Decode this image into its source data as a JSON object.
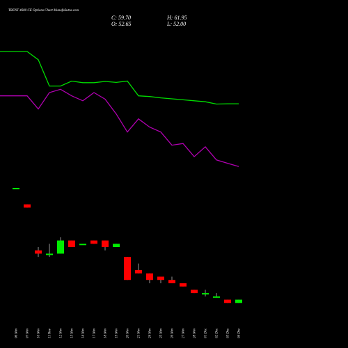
{
  "chart_data": {
    "type": "candlestick",
    "title": "TRENT 4600  CE Options  Chart MunafaSutra.com",
    "ohlc_labels": {
      "close": "C: 59.70",
      "high": "H: 61.95",
      "open": "O: 52.65",
      "low": "L: 52.00"
    },
    "price_range": [
      52.0,
      61.95
    ],
    "categories": [
      "06 Nov",
      "07 Nov",
      "10 Nov",
      "11 Nov",
      "12 Nov",
      "13 Nov",
      "14 Nov",
      "17 Nov",
      "18 Nov",
      "19 Nov",
      "20 Nov",
      "21 Nov",
      "24 Nov",
      "25 Nov",
      "26 Nov",
      "27 Nov",
      "28 Nov",
      "01 Dec",
      "02 Dec",
      "03 Dec",
      "04 Dec"
    ],
    "candles": [
      {
        "open": 57.1,
        "high": 57.1,
        "low": 57.1,
        "close": 57.1
      },
      {
        "open": 56.6,
        "high": 56.6,
        "low": 56.5,
        "close": 56.5
      },
      {
        "open": 55.2,
        "high": 55.3,
        "low": 55.0,
        "close": 55.1
      },
      {
        "open": 55.1,
        "high": 55.4,
        "low": 55.0,
        "close": 55.1
      },
      {
        "open": 55.1,
        "high": 55.6,
        "low": 55.1,
        "close": 55.5
      },
      {
        "open": 55.5,
        "high": 55.5,
        "low": 55.3,
        "close": 55.3
      },
      {
        "open": 55.4,
        "high": 55.4,
        "low": 55.4,
        "close": 55.4
      },
      {
        "open": 55.5,
        "high": 55.5,
        "low": 55.4,
        "close": 55.4
      },
      {
        "open": 55.5,
        "high": 55.5,
        "low": 55.2,
        "close": 55.3
      },
      {
        "open": 55.3,
        "high": 55.4,
        "low": 55.3,
        "close": 55.4
      },
      {
        "open": 55.0,
        "high": 55.0,
        "low": 54.3,
        "close": 54.3
      },
      {
        "open": 54.6,
        "high": 54.8,
        "low": 54.5,
        "close": 54.5
      },
      {
        "open": 54.5,
        "high": 54.5,
        "low": 54.2,
        "close": 54.3
      },
      {
        "open": 54.4,
        "high": 54.4,
        "low": 54.2,
        "close": 54.3
      },
      {
        "open": 54.3,
        "high": 54.4,
        "low": 54.2,
        "close": 54.2
      },
      {
        "open": 54.2,
        "high": 54.2,
        "low": 54.1,
        "close": 54.1
      },
      {
        "open": 54.0,
        "high": 54.0,
        "low": 53.9,
        "close": 53.9
      },
      {
        "open": 53.9,
        "high": 54.0,
        "low": 53.8,
        "close": 53.9
      },
      {
        "open": 53.8,
        "high": 53.9,
        "low": 53.8,
        "close": 53.8
      },
      {
        "open": 53.7,
        "high": 53.7,
        "low": 53.6,
        "close": 53.6
      },
      {
        "open": 53.6,
        "high": 53.7,
        "low": 53.6,
        "close": 53.7
      }
    ],
    "series": [
      {
        "color": "#00dd00",
        "values": [
          61.25,
          61.25,
          61.0,
          60.2,
          60.2,
          60.35,
          60.3,
          60.3,
          60.34,
          60.31,
          60.35,
          59.9,
          59.88,
          59.84,
          59.81,
          59.78,
          59.75,
          59.72,
          59.65,
          59.66,
          59.66
        ]
      },
      {
        "color": "#b000b0",
        "values": [
          59.9,
          59.9,
          59.5,
          60.0,
          60.1,
          59.9,
          59.75,
          60.0,
          59.8,
          59.35,
          58.8,
          59.2,
          58.95,
          58.8,
          58.4,
          58.45,
          58.05,
          58.35,
          57.95,
          57.85,
          57.75
        ]
      }
    ],
    "up_color": "#00ee00",
    "down_color": "#ff0000",
    "background": "#000000",
    "grid": false,
    "legend": "none"
  }
}
